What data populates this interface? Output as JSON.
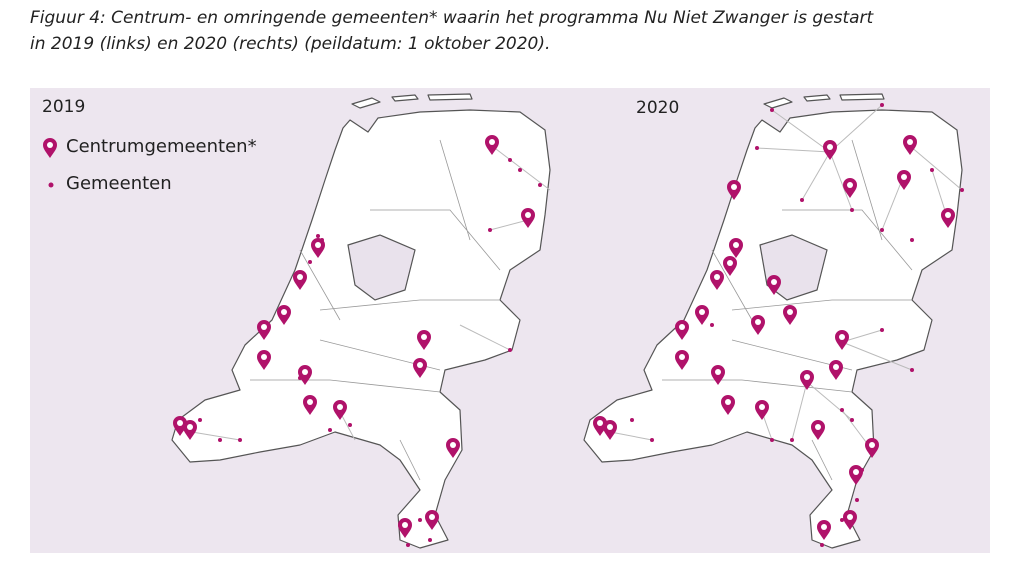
{
  "caption": {
    "lines": [
      "Figuur 4: Centrum- en omringende gemeenten* waarin het programma Nu Niet Zwanger is gestart",
      "in 2019 (links) en 2020 (rechts) (peildatum: 1 oktober 2020)."
    ]
  },
  "panels": [
    {
      "year": "2019"
    },
    {
      "year": "2020"
    }
  ],
  "legend": {
    "items": [
      {
        "label": "Centrumgemeenten*"
      },
      {
        "label": "Gemeenten"
      }
    ]
  }
}
